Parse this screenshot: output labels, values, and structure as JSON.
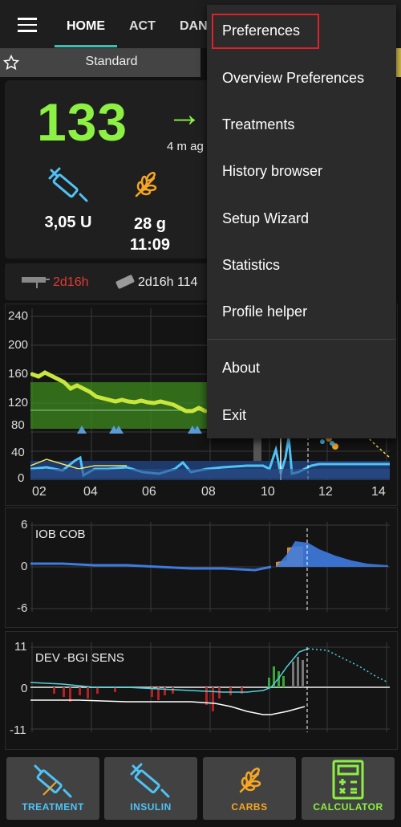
{
  "header": {
    "tabs": [
      {
        "label": "HOME",
        "active": true
      },
      {
        "label": "ACT"
      },
      {
        "label": "DAN"
      }
    ]
  },
  "profile": {
    "name": "Standard"
  },
  "overview": {
    "bg_value": "133",
    "trend_arrow": "→",
    "time_ago": "4 m ag",
    "iob": "3,05 U",
    "cob_amount": "28 g",
    "cob_time": "11:09"
  },
  "status": {
    "cannula_age": "2d16h",
    "sensor_age": "2d16h 114"
  },
  "bg_graph": {
    "y_ticks": [
      "240",
      "200",
      "160",
      "120",
      "80",
      "40",
      "0"
    ],
    "x_ticks": [
      "02",
      "04",
      "06",
      "08",
      "10",
      "12",
      "14"
    ]
  },
  "iob_graph": {
    "label": "IOB COB",
    "y_ticks": [
      "6",
      "0",
      "-6"
    ]
  },
  "dev_graph": {
    "label": "DEV -BGI SENS",
    "y_ticks": [
      "11",
      "0",
      "-11"
    ]
  },
  "menu": {
    "items": [
      "Preferences",
      "Overview Preferences",
      "Treatments",
      "History browser",
      "Setup Wizard",
      "Statistics",
      "Profile helper",
      "About",
      "Exit"
    ]
  },
  "bottom_buttons": [
    {
      "label": "TREATMENT",
      "color": "#4fc3f7"
    },
    {
      "label": "INSULIN",
      "color": "#4fc3f7"
    },
    {
      "label": "CARBS",
      "color": "#f5a623"
    },
    {
      "label": "CALCULATOR",
      "color": "#8cf142"
    }
  ],
  "colors": {
    "bg_in_range": "#8cf142",
    "accent_teal": "#3dbdb0",
    "warning_red": "#e53935",
    "highlight_red": "#e0202a"
  }
}
